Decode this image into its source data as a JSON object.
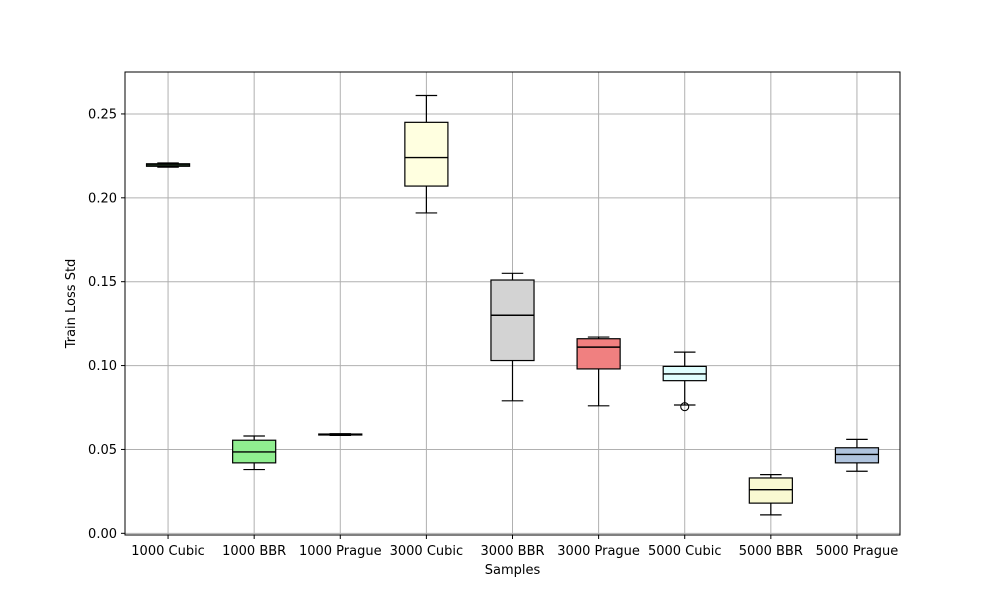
{
  "chart_data": {
    "type": "box",
    "title": "",
    "xlabel": "Samples",
    "ylabel": "Train Loss Std",
    "ylim": [
      -0.001,
      0.275
    ],
    "yticks": [
      0.0,
      0.05,
      0.1,
      0.15,
      0.2,
      0.25
    ],
    "ytick_labels": [
      "0.00",
      "0.05",
      "0.10",
      "0.15",
      "0.20",
      "0.25"
    ],
    "grid": true,
    "categories": [
      "1000 Cubic",
      "1000 BBR",
      "1000 Prague",
      "3000 Cubic",
      "3000 BBR",
      "3000 Prague",
      "5000 Cubic",
      "5000 BBR",
      "5000 Prague"
    ],
    "boxes": [
      {
        "label": "1000 Cubic",
        "whisker_low": 0.2183,
        "q1": 0.2188,
        "median": 0.2196,
        "q3": 0.2203,
        "whisker_high": 0.2208,
        "outliers": [],
        "color": "#98fb98"
      },
      {
        "label": "1000 BBR",
        "whisker_low": 0.038,
        "q1": 0.042,
        "median": 0.0485,
        "q3": 0.0555,
        "whisker_high": 0.058,
        "outliers": [],
        "color": "#90ee90"
      },
      {
        "label": "1000 Prague",
        "whisker_low": 0.0584,
        "q1": 0.0586,
        "median": 0.0589,
        "q3": 0.0592,
        "whisker_high": 0.0594,
        "outliers": [],
        "color": "#90ee90"
      },
      {
        "label": "3000 Cubic",
        "whisker_low": 0.191,
        "q1": 0.207,
        "median": 0.224,
        "q3": 0.245,
        "whisker_high": 0.261,
        "outliers": [],
        "color": "#ffffe0"
      },
      {
        "label": "3000 BBR",
        "whisker_low": 0.079,
        "q1": 0.103,
        "median": 0.13,
        "q3": 0.151,
        "whisker_high": 0.155,
        "outliers": [],
        "color": "#d3d3d3"
      },
      {
        "label": "3000 Prague",
        "whisker_low": 0.076,
        "q1": 0.098,
        "median": 0.111,
        "q3": 0.116,
        "whisker_high": 0.117,
        "outliers": [],
        "color": "#f08080"
      },
      {
        "label": "5000 Cubic",
        "whisker_low": 0.0765,
        "q1": 0.091,
        "median": 0.095,
        "q3": 0.0995,
        "whisker_high": 0.108,
        "outliers": [
          0.0755
        ],
        "color": "#e0ffff"
      },
      {
        "label": "5000 BBR",
        "whisker_low": 0.011,
        "q1": 0.018,
        "median": 0.026,
        "q3": 0.033,
        "whisker_high": 0.035,
        "outliers": [],
        "color": "#fafad2"
      },
      {
        "label": "5000 Prague",
        "whisker_low": 0.037,
        "q1": 0.042,
        "median": 0.047,
        "q3": 0.051,
        "whisker_high": 0.056,
        "outliers": [],
        "color": "#b0c4de"
      }
    ],
    "colors": {
      "grid": "#b0b0b0",
      "axes": "#000000",
      "median": "#000000"
    }
  }
}
